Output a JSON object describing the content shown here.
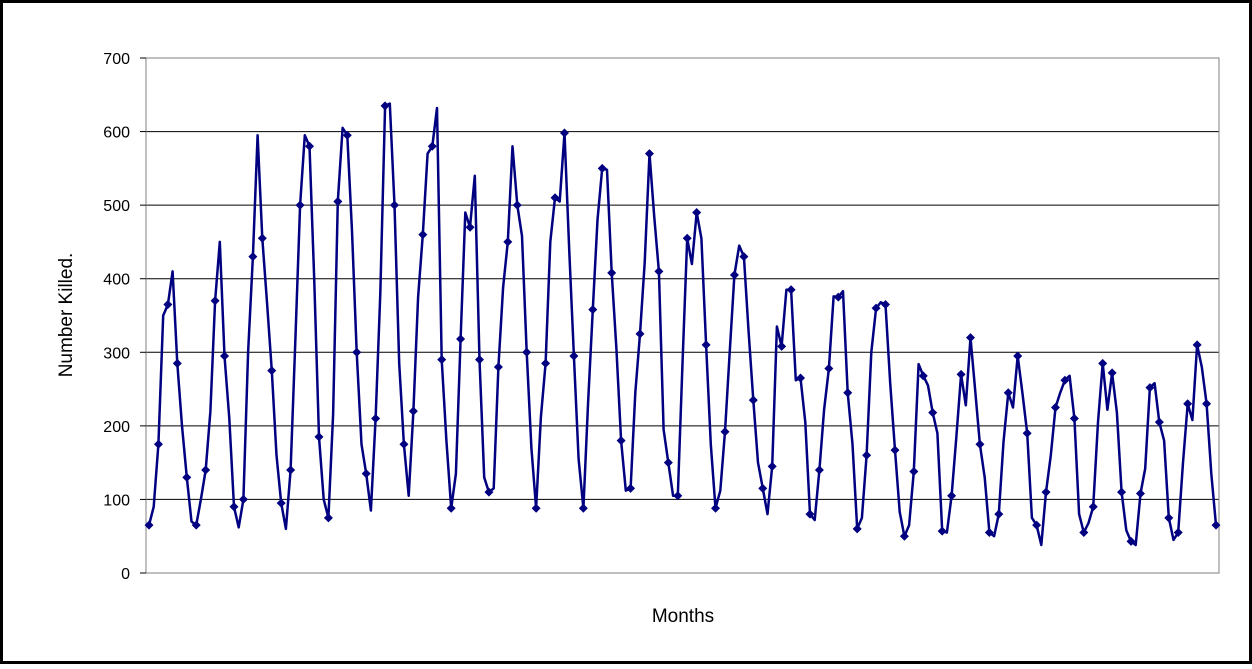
{
  "chart_data": {
    "type": "line",
    "title": "",
    "xlabel": "Months",
    "ylabel": "Number Killed.",
    "ylim": [
      0,
      700
    ],
    "yticks": [
      "0",
      "100",
      "200",
      "300",
      "400",
      "500",
      "600",
      "700"
    ],
    "grid": true,
    "legend": "none",
    "series": [
      {
        "color": "#000080",
        "marker": "diamond",
        "values": [
          65,
          90,
          175,
          350,
          365,
          410,
          285,
          200,
          130,
          70,
          65,
          100,
          140,
          220,
          370,
          450,
          295,
          210,
          90,
          62,
          100,
          300,
          430,
          595,
          455,
          368,
          275,
          160,
          95,
          60,
          140,
          318,
          500,
          595,
          580,
          400,
          185,
          100,
          75,
          215,
          505,
          605,
          595,
          465,
          300,
          175,
          135,
          85,
          210,
          380,
          635,
          638,
          500,
          285,
          175,
          105,
          220,
          375,
          460,
          570,
          580,
          632,
          290,
          180,
          88,
          135,
          318,
          490,
          470,
          540,
          290,
          130,
          110,
          115,
          280,
          388,
          450,
          580,
          500,
          458,
          300,
          170,
          88,
          212,
          285,
          450,
          510,
          505,
          598,
          440,
          295,
          155,
          88,
          232,
          358,
          480,
          550,
          548,
          408,
          305,
          180,
          112,
          115,
          245,
          325,
          422,
          570,
          485,
          410,
          195,
          150,
          105,
          105,
          285,
          455,
          420,
          490,
          455,
          310,
          175,
          88,
          112,
          192,
          300,
          405,
          445,
          430,
          328,
          235,
          150,
          115,
          80,
          145,
          335,
          308,
          385,
          385,
          262,
          265,
          205,
          80,
          72,
          140,
          222,
          278,
          376,
          375,
          383,
          245,
          175,
          60,
          75,
          160,
          300,
          360,
          368,
          365,
          258,
          167,
          83,
          50,
          65,
          138,
          284,
          268,
          255,
          218,
          190,
          57,
          55,
          105,
          184,
          270,
          228,
          320,
          248,
          175,
          130,
          55,
          50,
          80,
          178,
          245,
          225,
          295,
          245,
          190,
          75,
          65,
          38,
          110,
          160,
          225,
          245,
          262,
          268,
          210,
          80,
          55,
          68,
          90,
          205,
          285,
          222,
          272,
          218,
          110,
          58,
          43,
          38,
          108,
          142,
          252,
          258,
          205,
          180,
          75,
          45,
          55,
          150,
          230,
          208,
          310,
          280,
          230,
          135,
          65
        ]
      }
    ]
  }
}
